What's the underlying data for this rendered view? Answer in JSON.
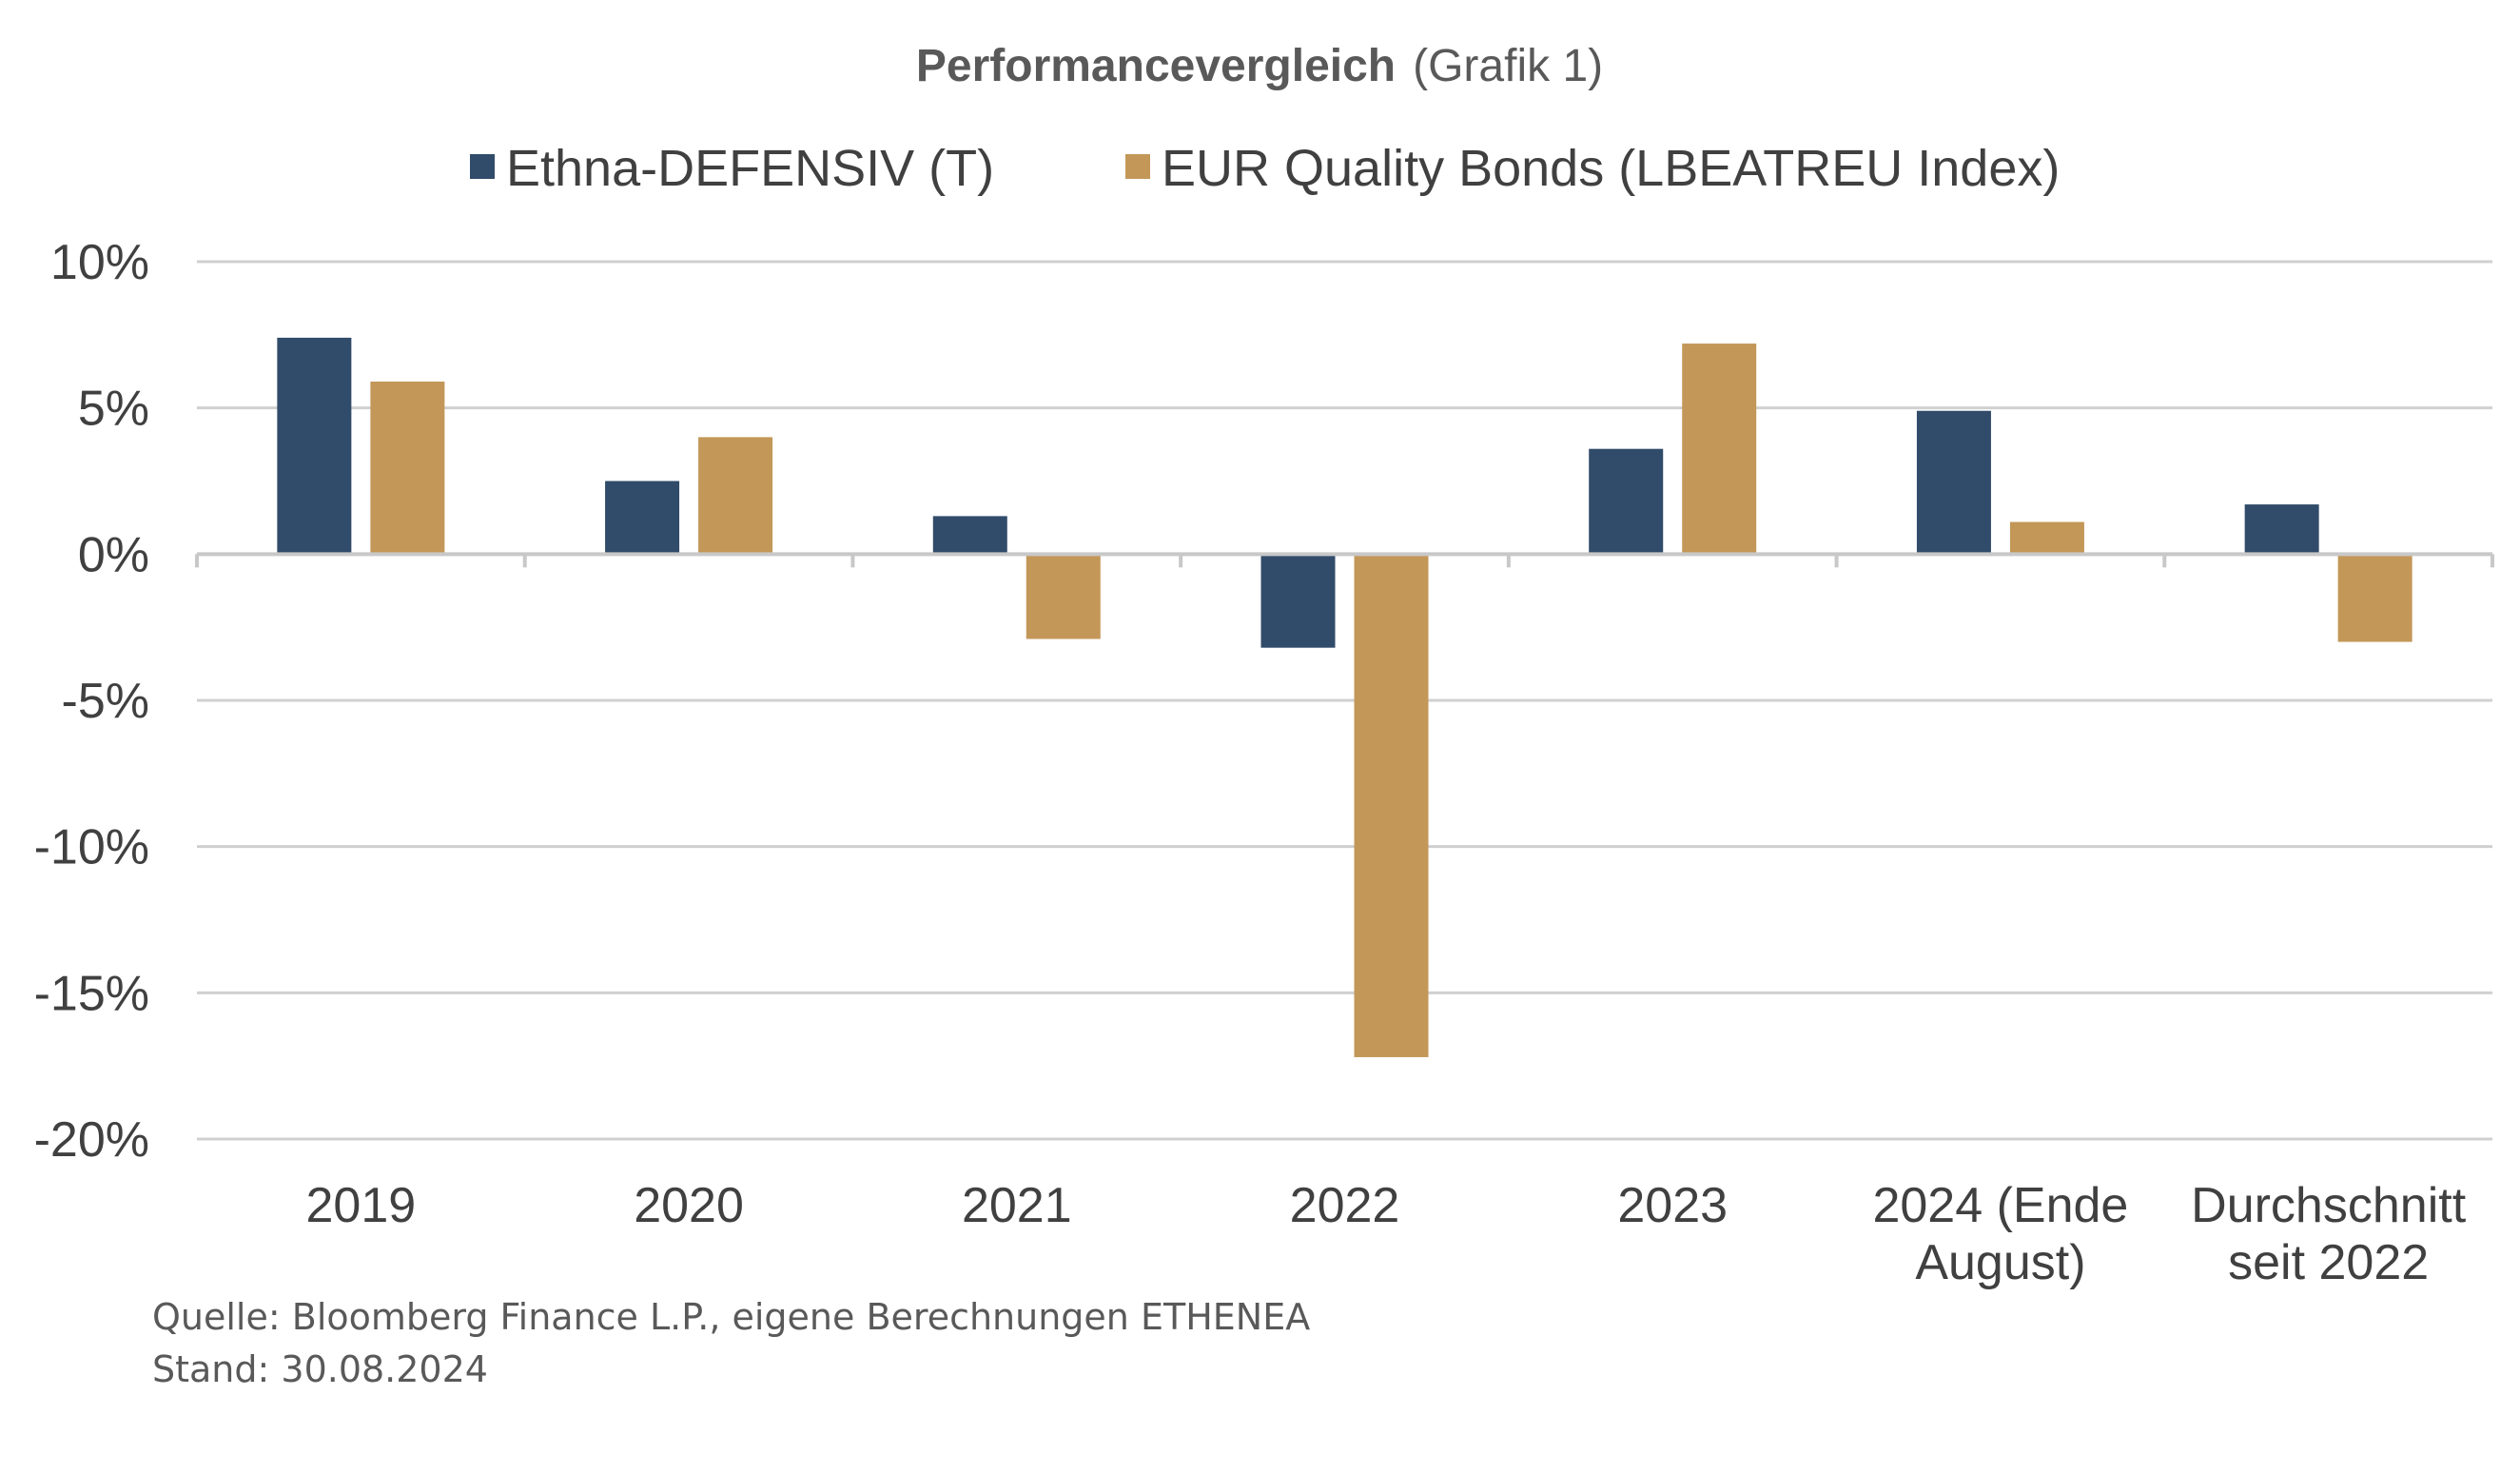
{
  "chart_data": {
    "type": "bar",
    "title": "Performancevergleich",
    "title_suffix": "(Grafik 1)",
    "categories": [
      [
        "2019"
      ],
      [
        "2020"
      ],
      [
        "2021"
      ],
      [
        "2022"
      ],
      [
        "2023"
      ],
      [
        "2024 (Ende",
        "August)"
      ],
      [
        "Durchschnitt",
        "seit 2022"
      ]
    ],
    "series": [
      {
        "name": "Ethna-DEFENSIV (T)",
        "color": "#314b6a",
        "values": [
          7.4,
          2.5,
          1.3,
          -3.2,
          3.6,
          4.9,
          1.7
        ]
      },
      {
        "name": "EUR Quality Bonds (LBEATREU Index)",
        "color": "#c39758",
        "values": [
          5.9,
          4.0,
          -2.9,
          -17.2,
          7.2,
          1.1,
          -3.0
        ]
      }
    ],
    "ylim": [
      -20,
      10
    ],
    "yticks": [
      10,
      5,
      0,
      -5,
      -10,
      -15,
      -20
    ],
    "ytick_labels": [
      "10%",
      "5%",
      "0%",
      "-5%",
      "-10%",
      "-15%",
      "-20%"
    ],
    "grid": true,
    "legend": "top-center",
    "footnotes": [
      "Quelle: Bloomberg Finance L.P., eigene Berechnungen ETHENEA",
      "Stand: 30.08.2024"
    ]
  }
}
